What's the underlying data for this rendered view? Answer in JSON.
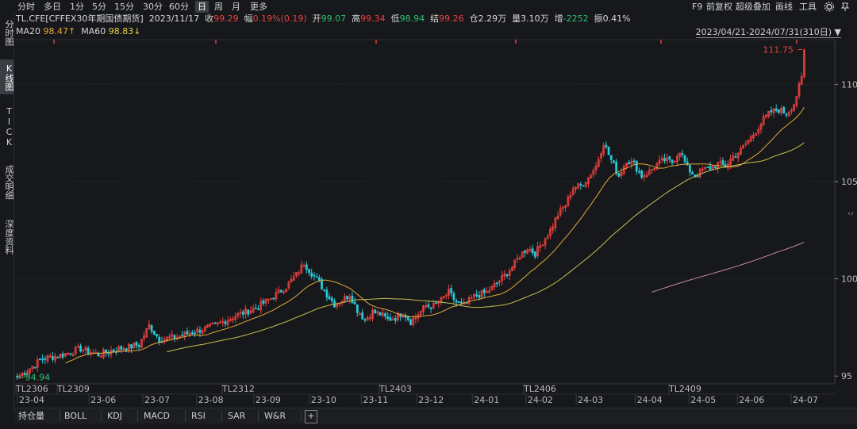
{
  "toolbar": {
    "periods": [
      "分时",
      "多日",
      "1分",
      "5分",
      "15分",
      "30分",
      "60分",
      "日",
      "周",
      "月",
      "更多"
    ],
    "active_period": "日",
    "right_items": [
      "F9",
      "前复权",
      "超级叠加",
      "画线",
      "工具"
    ],
    "icons": [
      "gear-icon",
      "pin-icon"
    ]
  },
  "sidebar": {
    "items": [
      "分时图",
      "K线图",
      "TICK",
      "成交明细",
      "深度资料"
    ],
    "active": "K线图"
  },
  "info": {
    "symbol": "TL.CFE[CFFEX30年期国债期货]",
    "date": "2023/11/17",
    "close_label": "收",
    "close": "99.29",
    "change_label": "幅",
    "change": "0.19%(0.19)",
    "open_label": "开",
    "open": "99.07",
    "high_label": "高",
    "high": "99.34",
    "low_label": "低",
    "low": "98.94",
    "settle_label": "结",
    "settle": "99.26",
    "oi_label": "仓",
    "oi": "2.29万",
    "vol_label": "量",
    "vol": "3.10万",
    "inc_label": "增",
    "inc": "-2252",
    "amp_label": "振",
    "amp": "0.41%"
  },
  "ma": {
    "ma20_label": "MA20",
    "ma20": "98.47↑",
    "ma60_label": "MA60",
    "ma60": "98.83↓"
  },
  "range": "2023/04/21-2024/07/31(310日)",
  "indicator_tabs": [
    "持仓量",
    "BOLL",
    "KDJ",
    "MACD",
    "RSI",
    "SAR",
    "W&R",
    "+"
  ],
  "chart_data": {
    "type": "candlestick",
    "y_ticks": [
      95,
      100,
      105,
      110
    ],
    "ylim": [
      94.6,
      112.3
    ],
    "x_labels": [
      "23-04",
      "23-06",
      "23-07",
      "23-08",
      "23-09",
      "23-10",
      "23-11",
      "23-12",
      "24-01",
      "24-02",
      "24-03",
      "24-04",
      "24-05",
      "24-06",
      "24-07"
    ],
    "contract_labels": [
      "TL2306",
      "TL2309",
      "TL2312",
      "TL2403",
      "TL2406",
      "TL2409"
    ],
    "annotations": {
      "max": "111.75",
      "min": "94.94"
    },
    "colors": {
      "up": "#e8413f",
      "down": "#27c8d8",
      "ma20": "#e2a93a",
      "ma60": "#c8c050",
      "ma_long": "#c08aa0",
      "grid": "#2a2d31"
    },
    "close_path": [
      [
        0,
        94.94
      ],
      [
        4,
        95.3
      ],
      [
        10,
        95.9
      ],
      [
        18,
        96.1
      ],
      [
        25,
        96.4
      ],
      [
        32,
        96.1
      ],
      [
        40,
        96.4
      ],
      [
        48,
        96.6
      ],
      [
        52,
        97.6
      ],
      [
        56,
        96.9
      ],
      [
        63,
        97.0
      ],
      [
        70,
        97.3
      ],
      [
        78,
        97.6
      ],
      [
        86,
        98.1
      ],
      [
        94,
        98.5
      ],
      [
        100,
        99.0
      ],
      [
        106,
        99.6
      ],
      [
        110,
        100.2
      ],
      [
        113,
        100.8
      ],
      [
        116,
        100.3
      ],
      [
        119,
        99.8
      ],
      [
        122,
        99.2
      ],
      [
        125,
        98.7
      ],
      [
        128,
        98.9
      ],
      [
        131,
        99.2
      ],
      [
        134,
        98.4
      ],
      [
        137,
        97.9
      ],
      [
        140,
        98.3
      ],
      [
        143,
        98.2
      ],
      [
        146,
        97.9
      ],
      [
        149,
        98.0
      ],
      [
        152,
        98.3
      ],
      [
        155,
        97.8
      ],
      [
        158,
        98.2
      ],
      [
        161,
        98.6
      ],
      [
        164,
        98.6
      ],
      [
        167,
        98.9
      ],
      [
        170,
        99.3
      ],
      [
        173,
        98.8
      ],
      [
        176,
        98.6
      ],
      [
        180,
        99.1
      ],
      [
        185,
        99.3
      ],
      [
        190,
        99.9
      ],
      [
        195,
        100.6
      ],
      [
        198,
        101.2
      ],
      [
        201,
        101.6
      ],
      [
        204,
        101.3
      ],
      [
        207,
        101.9
      ],
      [
        210,
        102.5
      ],
      [
        213,
        103.3
      ],
      [
        216,
        103.8
      ],
      [
        219,
        104.7
      ],
      [
        222,
        104.8
      ],
      [
        225,
        105.2
      ],
      [
        228,
        105.8
      ],
      [
        231,
        107.0
      ],
      [
        234,
        106.1
      ],
      [
        237,
        105.3
      ],
      [
        240,
        106.1
      ],
      [
        243,
        105.9
      ],
      [
        246,
        105.3
      ],
      [
        249,
        105.5
      ],
      [
        252,
        105.9
      ],
      [
        255,
        106.1
      ],
      [
        258,
        106.0
      ],
      [
        261,
        106.6
      ],
      [
        264,
        105.7
      ],
      [
        267,
        105.3
      ],
      [
        270,
        105.6
      ],
      [
        273,
        105.7
      ],
      [
        276,
        105.9
      ],
      [
        279,
        105.8
      ],
      [
        282,
        106.3
      ],
      [
        285,
        106.6
      ],
      [
        288,
        107.1
      ],
      [
        291,
        107.6
      ],
      [
        294,
        108.2
      ],
      [
        297,
        108.6
      ],
      [
        300,
        108.7
      ],
      [
        303,
        108.5
      ],
      [
        306,
        109.0
      ],
      [
        309,
        110.3
      ],
      [
        310,
        111.75
      ]
    ],
    "ma_start": {
      "ma20": 10,
      "ma60": 45,
      "ma_long": 250
    }
  }
}
